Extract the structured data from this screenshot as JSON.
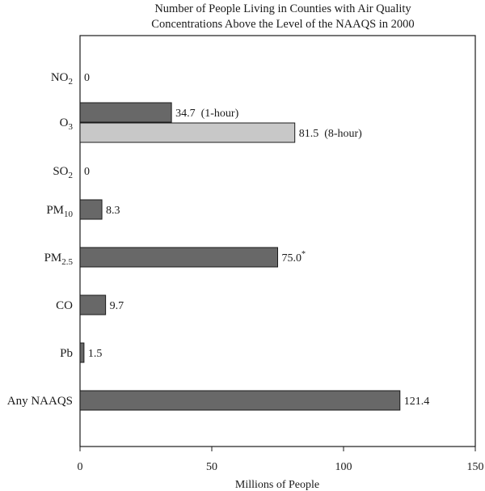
{
  "chart_data": {
    "type": "bar",
    "title": "Number of People Living in Counties with Air Quality\nConcentrations Above the Level of the NAAQS in 2000",
    "title_lines": [
      "Number of People Living in Counties with Air Quality",
      "Concentrations Above the Level of the NAAQS in 2000"
    ],
    "xlabel": "Millions of People",
    "ylabel": "",
    "orientation": "horizontal",
    "xlim": [
      0,
      150
    ],
    "xticks": [
      0,
      50,
      100,
      150
    ],
    "grid": false,
    "categories": [
      {
        "label": "NO",
        "sub": "2"
      },
      {
        "label": "O",
        "sub": "3"
      },
      {
        "label": "SO",
        "sub": "2"
      },
      {
        "label": "PM",
        "sub": "10"
      },
      {
        "label": "PM",
        "sub": "2.5"
      },
      {
        "label": "CO",
        "sub": ""
      },
      {
        "label": "Pb",
        "sub": ""
      },
      {
        "label": "Any NAAQS",
        "sub": ""
      }
    ],
    "bars": [
      {
        "category": 0,
        "value": 0,
        "label": "0",
        "note": "",
        "style": "dark"
      },
      {
        "category": 1,
        "value": 34.7,
        "label": "34.7",
        "note": "(1-hour)",
        "style": "dark",
        "slot": "upper"
      },
      {
        "category": 1,
        "value": 81.5,
        "label": "81.5",
        "note": "(8-hour)",
        "style": "light",
        "slot": "lower"
      },
      {
        "category": 2,
        "value": 0,
        "label": "0",
        "note": "",
        "style": "dark"
      },
      {
        "category": 3,
        "value": 8.3,
        "label": "8.3",
        "note": "",
        "style": "dark"
      },
      {
        "category": 4,
        "value": 75.0,
        "label": "75.0",
        "note": "*",
        "style": "dark"
      },
      {
        "category": 5,
        "value": 9.7,
        "label": "9.7",
        "note": "",
        "style": "dark"
      },
      {
        "category": 6,
        "value": 1.5,
        "label": "1.5",
        "note": "",
        "style": "dark"
      },
      {
        "category": 7,
        "value": 121.4,
        "label": "121.4",
        "note": "",
        "style": "dark"
      }
    ],
    "colors": {
      "dark": "#686868",
      "light": "#c8c8c8",
      "outline": "#1a1a1a"
    }
  }
}
